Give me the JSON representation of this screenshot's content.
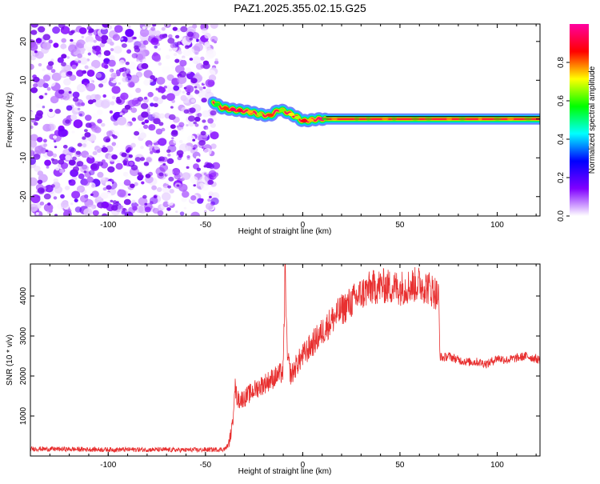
{
  "figure": {
    "title": "PAZ1.2025.355.02.15.G25"
  },
  "chart_data": [
    {
      "type": "heatmap",
      "title": "PAZ1.2025.355.02.15.G25",
      "xlabel": "Height of straight line (km)",
      "ylabel": "Frequency (Hz)",
      "xlim": [
        -140,
        122
      ],
      "ylim": [
        -25,
        24.5
      ],
      "xticks": [
        -100,
        -50,
        0,
        50,
        100
      ],
      "yticks": [
        -20,
        -10,
        0,
        10,
        20
      ],
      "colorbar": {
        "label": "Normalized spectral amplitude",
        "range": [
          0.0,
          1.0
        ],
        "ticks": [
          0.0,
          0.2,
          0.4,
          0.6,
          0.8
        ],
        "colors": [
          "#ffffff",
          "#8000ff",
          "#0000ff",
          "#00ffff",
          "#00ff00",
          "#ffff00",
          "#ff0000",
          "#ff00a0"
        ]
      },
      "noise_region_x": [
        -140,
        -44
      ],
      "signal_ridge": {
        "x": [
          -46,
          -42,
          -37,
          -32,
          -27,
          -22,
          -17,
          -12,
          -7,
          -3,
          0,
          4,
          8,
          12,
          40,
          80,
          122
        ],
        "freq": [
          4.5,
          3,
          2.5,
          2.2,
          1.8,
          1.2,
          0.8,
          2.5,
          1.5,
          0.5,
          -0.5,
          -0.3,
          0,
          0,
          0,
          0,
          0
        ],
        "amplitude": [
          0.25,
          0.55,
          0.8,
          0.75,
          0.6,
          0.5,
          0.7,
          0.45,
          0.6,
          0.5,
          0.75,
          0.6,
          0.75,
          0.95,
          0.95,
          0.95,
          0.95
        ]
      }
    },
    {
      "type": "line",
      "xlabel": "Height of straight line (km)",
      "ylabel": "SNR (10 * v/v)",
      "xlim": [
        -140,
        122
      ],
      "ylim": [
        0,
        4800
      ],
      "xticks": [
        -100,
        -50,
        0,
        50,
        100
      ],
      "yticks": [
        1000,
        2000,
        3000,
        4000
      ],
      "color": "#e83030",
      "series": [
        {
          "name": "SNR",
          "x": [
            -140,
            -120,
            -100,
            -80,
            -60,
            -45,
            -40,
            -38,
            -36,
            -35,
            -34,
            -33,
            -30,
            -25,
            -20,
            -15,
            -10,
            -9,
            -8,
            -6,
            -3,
            0,
            5,
            10,
            15,
            20,
            25,
            30,
            35,
            40,
            45,
            50,
            55,
            60,
            65,
            68,
            70,
            70.5,
            72,
            75,
            80,
            85,
            90,
            95,
            100,
            105,
            110,
            115,
            122
          ],
          "y": [
            180,
            170,
            160,
            160,
            150,
            160,
            170,
            300,
            800,
            1800,
            1500,
            1400,
            1450,
            1650,
            1800,
            1950,
            2100,
            4800,
            2500,
            2000,
            2300,
            2500,
            2800,
            3100,
            3400,
            3650,
            3850,
            4050,
            4200,
            4250,
            4230,
            4200,
            4250,
            4300,
            4200,
            4100,
            3950,
            2500,
            2450,
            2500,
            2400,
            2350,
            2350,
            2300,
            2450,
            2400,
            2450,
            2500,
            2400
          ]
        }
      ]
    }
  ]
}
